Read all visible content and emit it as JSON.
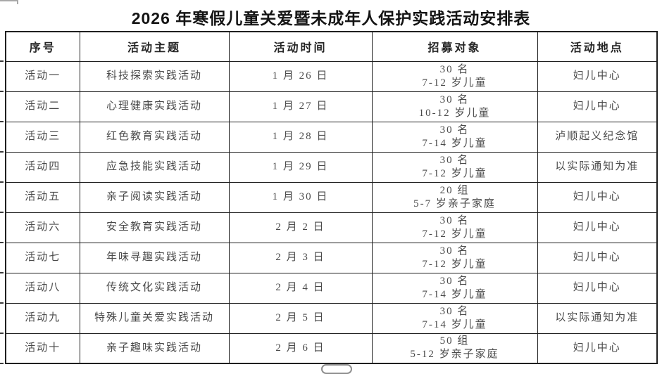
{
  "page": {
    "title": "2026 年寒假儿童关爱暨未成年人保护实践活动安排表"
  },
  "colors": {
    "border": "#1f1f1f",
    "title_text": "#141414",
    "body_text": "#4a4a4a",
    "pill_border": "#8f8f8f"
  },
  "table": {
    "headers": [
      "序号",
      "活动主题",
      "活动时间",
      "招募对象",
      "活动地点"
    ],
    "rows": [
      {
        "no": "活动一",
        "theme": "科技探索实践活动",
        "date": "1 月 26 日",
        "target": {
          "count": "30 名",
          "group": "7-12 岁儿童"
        },
        "location": "妇儿中心"
      },
      {
        "no": "活动二",
        "theme": "心理健康实践活动",
        "date": "1 月 27 日",
        "target": {
          "count": "30 名",
          "group": "10-12 岁儿童"
        },
        "location": "妇儿中心"
      },
      {
        "no": "活动三",
        "theme": "红色教育实践活动",
        "date": "1 月 28 日",
        "target": {
          "count": "30 名",
          "group": "7-14 岁儿童"
        },
        "location": "泸顺起义纪念馆"
      },
      {
        "no": "活动四",
        "theme": "应急技能实践活动",
        "date": "1 月 29 日",
        "target": {
          "count": "30 名",
          "group": "7-12 岁儿童"
        },
        "location": "以实际通知为准"
      },
      {
        "no": "活动五",
        "theme": "亲子阅读实践活动",
        "date": "1 月 30 日",
        "target": {
          "count": "20 组",
          "group": "5-7 岁亲子家庭"
        },
        "location": "妇儿中心"
      },
      {
        "no": "活动六",
        "theme": "安全教育实践活动",
        "date": "2 月 2 日",
        "target": {
          "count": "30 名",
          "group": "7-12 岁儿童"
        },
        "location": "妇儿中心"
      },
      {
        "no": "活动七",
        "theme": "年味寻趣实践活动",
        "date": "2 月 3 日",
        "target": {
          "count": "30 名",
          "group": "7-12 岁儿童"
        },
        "location": "妇儿中心"
      },
      {
        "no": "活动八",
        "theme": "传统文化实践活动",
        "date": "2 月 4 日",
        "target": {
          "count": "30 名",
          "group": "7-14 岁儿童"
        },
        "location": "妇儿中心"
      },
      {
        "no": "活动九",
        "theme": "特殊儿童关爱实践活动",
        "date": "2 月 5 日",
        "target": {
          "count": "30 名",
          "group": "7-14 岁儿童"
        },
        "location": "以实际通知为准"
      },
      {
        "no": "活动十",
        "theme": "亲子趣味实践活动",
        "date": "2 月 6 日",
        "target": {
          "count": "50 组",
          "group": "5-12 岁亲子家庭"
        },
        "location": "妇儿中心"
      }
    ]
  }
}
